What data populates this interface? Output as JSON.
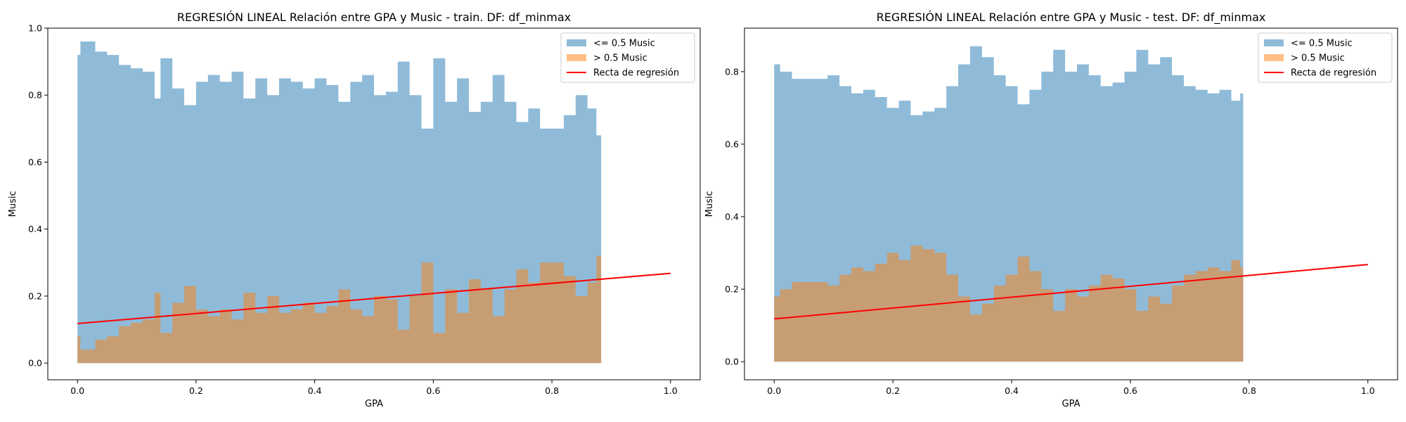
{
  "chart_data": [
    {
      "type": "area",
      "title": "REGRESIÓN LINEAL Relación entre GPA y Music - train. DF: df_minmax",
      "xlabel": "GPA",
      "ylabel": "Music",
      "xlim": [
        -0.05,
        1.05
      ],
      "ylim": [
        -0.05,
        1.0
      ],
      "xticks": [
        "0.0",
        "0.2",
        "0.4",
        "0.6",
        "0.8",
        "1.0"
      ],
      "yticks": [
        "0.0",
        "0.2",
        "0.4",
        "0.6",
        "0.8",
        "1.0"
      ],
      "legend_position": "upper right",
      "series": [
        {
          "name": "<= 0.5 Music",
          "color": "#1f77b4",
          "opacity": 0.5,
          "x": [
            0.0,
            0.005,
            0.02,
            0.03,
            0.05,
            0.07,
            0.09,
            0.11,
            0.13,
            0.14,
            0.16,
            0.18,
            0.2,
            0.22,
            0.24,
            0.26,
            0.28,
            0.3,
            0.32,
            0.34,
            0.36,
            0.38,
            0.4,
            0.42,
            0.44,
            0.46,
            0.48,
            0.5,
            0.52,
            0.54,
            0.56,
            0.58,
            0.6,
            0.62,
            0.64,
            0.66,
            0.68,
            0.7,
            0.72,
            0.74,
            0.76,
            0.78,
            0.8,
            0.82,
            0.84,
            0.86,
            0.875,
            0.883
          ],
          "y": [
            0.92,
            0.96,
            0.96,
            0.93,
            0.92,
            0.89,
            0.88,
            0.87,
            0.79,
            0.91,
            0.82,
            0.77,
            0.84,
            0.86,
            0.84,
            0.87,
            0.79,
            0.85,
            0.8,
            0.85,
            0.84,
            0.82,
            0.85,
            0.83,
            0.78,
            0.84,
            0.86,
            0.8,
            0.81,
            0.9,
            0.8,
            0.7,
            0.91,
            0.78,
            0.85,
            0.75,
            0.78,
            0.86,
            0.78,
            0.72,
            0.76,
            0.7,
            0.7,
            0.74,
            0.8,
            0.76,
            0.68,
            0.68
          ]
        },
        {
          "name": "> 0.5 Music",
          "color": "#ff7f0e",
          "opacity": 0.5,
          "x": [
            0.0,
            0.005,
            0.02,
            0.03,
            0.05,
            0.07,
            0.09,
            0.11,
            0.13,
            0.14,
            0.16,
            0.18,
            0.2,
            0.22,
            0.24,
            0.26,
            0.28,
            0.3,
            0.32,
            0.34,
            0.36,
            0.38,
            0.4,
            0.42,
            0.44,
            0.46,
            0.48,
            0.5,
            0.52,
            0.54,
            0.56,
            0.58,
            0.6,
            0.62,
            0.64,
            0.66,
            0.68,
            0.7,
            0.72,
            0.74,
            0.76,
            0.78,
            0.8,
            0.82,
            0.84,
            0.86,
            0.875,
            0.883
          ],
          "y": [
            0.08,
            0.04,
            0.04,
            0.07,
            0.08,
            0.11,
            0.12,
            0.13,
            0.21,
            0.09,
            0.18,
            0.23,
            0.16,
            0.14,
            0.16,
            0.13,
            0.21,
            0.15,
            0.2,
            0.15,
            0.16,
            0.18,
            0.15,
            0.17,
            0.22,
            0.16,
            0.14,
            0.2,
            0.19,
            0.1,
            0.2,
            0.3,
            0.09,
            0.22,
            0.15,
            0.25,
            0.22,
            0.14,
            0.22,
            0.28,
            0.24,
            0.3,
            0.3,
            0.26,
            0.2,
            0.24,
            0.32,
            0.32
          ]
        },
        {
          "name": "Recta de regresión",
          "type": "line",
          "color": "#ff0000",
          "x": [
            0.0,
            1.0
          ],
          "y": [
            0.118,
            0.268
          ]
        }
      ]
    },
    {
      "type": "area",
      "title": "REGRESIÓN LINEAL Relación entre GPA y Music - test. DF: df_minmax",
      "xlabel": "GPA",
      "ylabel": "Music",
      "xlim": [
        -0.05,
        1.05
      ],
      "ylim": [
        -0.05,
        0.92
      ],
      "xticks": [
        "0.0",
        "0.2",
        "0.4",
        "0.6",
        "0.8",
        "1.0"
      ],
      "yticks": [
        "0.0",
        "0.2",
        "0.4",
        "0.6",
        "0.8"
      ],
      "legend_position": "upper right",
      "series": [
        {
          "name": "<= 0.5 Music",
          "color": "#1f77b4",
          "opacity": 0.5,
          "x": [
            0.0,
            0.01,
            0.03,
            0.05,
            0.07,
            0.09,
            0.11,
            0.13,
            0.15,
            0.17,
            0.19,
            0.21,
            0.23,
            0.25,
            0.27,
            0.29,
            0.31,
            0.33,
            0.35,
            0.37,
            0.39,
            0.41,
            0.43,
            0.45,
            0.47,
            0.49,
            0.51,
            0.53,
            0.55,
            0.57,
            0.59,
            0.61,
            0.63,
            0.65,
            0.67,
            0.69,
            0.71,
            0.73,
            0.75,
            0.77,
            0.785,
            0.79
          ],
          "y": [
            0.82,
            0.8,
            0.78,
            0.78,
            0.78,
            0.79,
            0.76,
            0.74,
            0.75,
            0.73,
            0.7,
            0.72,
            0.68,
            0.69,
            0.7,
            0.76,
            0.82,
            0.87,
            0.84,
            0.79,
            0.76,
            0.71,
            0.75,
            0.8,
            0.86,
            0.8,
            0.82,
            0.79,
            0.76,
            0.77,
            0.8,
            0.86,
            0.82,
            0.84,
            0.79,
            0.76,
            0.75,
            0.74,
            0.75,
            0.72,
            0.74,
            0.73
          ]
        },
        {
          "name": "> 0.5 Music",
          "color": "#ff7f0e",
          "opacity": 0.5,
          "x": [
            0.0,
            0.01,
            0.03,
            0.05,
            0.07,
            0.09,
            0.11,
            0.13,
            0.15,
            0.17,
            0.19,
            0.21,
            0.23,
            0.25,
            0.27,
            0.29,
            0.31,
            0.33,
            0.35,
            0.37,
            0.39,
            0.41,
            0.43,
            0.45,
            0.47,
            0.49,
            0.51,
            0.53,
            0.55,
            0.57,
            0.59,
            0.61,
            0.63,
            0.65,
            0.67,
            0.69,
            0.71,
            0.73,
            0.75,
            0.77,
            0.785,
            0.79
          ],
          "y": [
            0.18,
            0.2,
            0.22,
            0.22,
            0.22,
            0.21,
            0.24,
            0.26,
            0.25,
            0.27,
            0.3,
            0.28,
            0.32,
            0.31,
            0.3,
            0.24,
            0.18,
            0.13,
            0.16,
            0.21,
            0.24,
            0.29,
            0.25,
            0.2,
            0.14,
            0.2,
            0.18,
            0.21,
            0.24,
            0.23,
            0.2,
            0.14,
            0.18,
            0.16,
            0.21,
            0.24,
            0.25,
            0.26,
            0.25,
            0.28,
            0.26,
            0.27
          ]
        },
        {
          "name": "Recta de regresión",
          "type": "line",
          "color": "#ff0000",
          "x": [
            0.0,
            1.0
          ],
          "y": [
            0.118,
            0.268
          ]
        }
      ]
    }
  ]
}
